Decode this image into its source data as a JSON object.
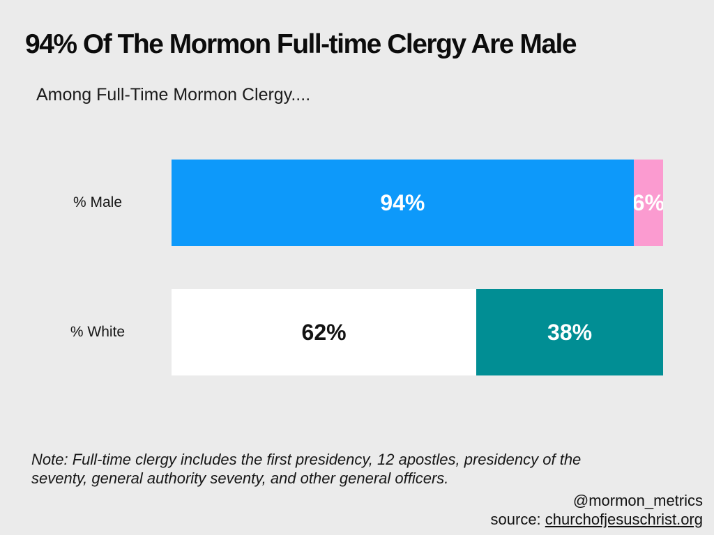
{
  "header": {
    "title": "94% Of The Mormon Full-time Clergy Are Male",
    "subtitle": "Among Full-Time Mormon Clergy...."
  },
  "chart_data": {
    "type": "bar",
    "orientation": "horizontal",
    "stacked": true,
    "xlim": [
      0,
      100
    ],
    "grid": false,
    "legend": "none",
    "title": "94% Of The Mormon Full-time Clergy Are Male",
    "subtitle": "Among Full-Time Mormon Clergy....",
    "categories": [
      "% Male",
      "% White"
    ],
    "rows": [
      {
        "category": "% Male",
        "segments": [
          {
            "label": "94%",
            "value": 94,
            "color": "#0d99fa",
            "text_color": "#ffffff"
          },
          {
            "label": "6%",
            "value": 6,
            "color": "#fb9bd0",
            "text_color": "#ffffff"
          }
        ]
      },
      {
        "category": "% White",
        "segments": [
          {
            "label": "62%",
            "value": 62,
            "color": "#ffffff",
            "text_color": "#131313"
          },
          {
            "label": "38%",
            "value": 38,
            "color": "#018e94",
            "text_color": "#ffffff"
          }
        ]
      }
    ]
  },
  "footnote": {
    "lines": [
      "Note: Full-time clergy includes the first presidency, 12 apostles, presidency of the",
      "seventy, general authority seventy, and other general officers."
    ]
  },
  "attribution": {
    "handle": "@mormon_metrics",
    "source_prefix": "source: ",
    "source_link": "churchofjesuschrist.org"
  },
  "colors": {
    "background": "#ebebeb",
    "male_blue": "#0d99fa",
    "female_pink": "#fb9bd0",
    "white_bar": "#ffffff",
    "nonwhite_teal": "#018e94"
  }
}
